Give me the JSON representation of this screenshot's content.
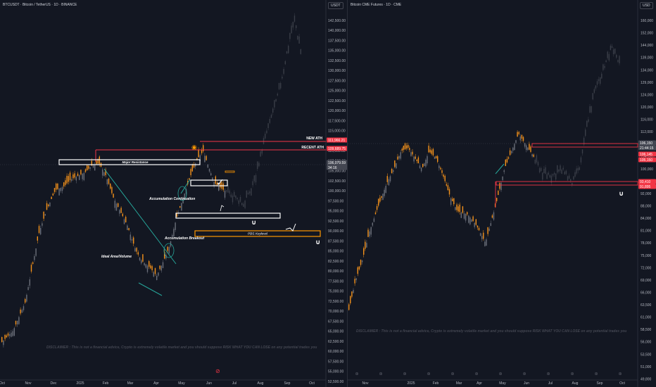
{
  "colors": {
    "bg": "#131722",
    "up": "#f7931a",
    "down": "#6b6f7a",
    "faded": "#3a3e48",
    "red": "#f23645",
    "orange": "#ff9800",
    "teal": "#26a69a",
    "white": "#ffffff",
    "axis": "#b2b5be",
    "grid": "#1e222d"
  },
  "left": {
    "title": "BTCUSDT · Bitcoin / TetherUS · 1D · BINANCE",
    "currency": "USDT",
    "disclaimer": "DISCLAIMER : This is not a financial advice, Crypto is extremely volatile market and you should suppose RISK WHAT YOU CAN LOSE on any potential trades you",
    "price_ticks": [
      "142,500.00",
      "140,000.00",
      "137,500.00",
      "135,000.00",
      "132,500.00",
      "130,000.00",
      "127,500.00",
      "125,000.00",
      "122,500.00",
      "120,000.00",
      "117,500.00",
      "115,000.00",
      "112,500.00",
      "110,000.00",
      "107,500.00",
      "105,000.00",
      "102,500.00",
      "100,000.00",
      "97,500.00",
      "95,000.00",
      "92,500.00",
      "90,000.00",
      "87,500.00",
      "85,000.00",
      "82,500.00",
      "80,000.00",
      "77,500.00",
      "75,000.00",
      "72,500.00",
      "70,000.00",
      "67,500.00",
      "65,000.00",
      "62,500.00",
      "60,000.00",
      "57,500.00",
      "55,000.00",
      "52,500.00"
    ],
    "time_ticks": [
      "Oct",
      "Nov",
      "Dec",
      "2025",
      "Feb",
      "Mar",
      "Apr",
      "May",
      "Jun",
      "Jul",
      "Aug",
      "Sep",
      "Oct"
    ],
    "badges": [
      {
        "value": "111,966.21",
        "color": "#f23645"
      },
      {
        "value": "109,689.75",
        "color": "#f23645"
      },
      {
        "value": "106,079.59",
        "color": "#434651"
      },
      {
        "value": "34:16",
        "color": "#434651"
      }
    ],
    "labels": {
      "new_ath": "NEW ATH",
      "recent_ath": "RECENT ATH",
      "major_resistance": "Major Resistance",
      "accumulation_continuation": "Accumulation Continuation",
      "accumulation_breakout": "Accumulation Breakout",
      "ideal_area": "Ideal Area/Volume",
      "keylevel": "PB/1 Keylevel"
    }
  },
  "right": {
    "title": "Bitcoin CME Futures · 1D · CME",
    "currency": "USD",
    "disclaimer": "DISCLAIMER : This is not a financial advice, Crypto is extremely volatile market and you should suppose RISK WHAT YOU CAN LOSE on any potential trades you",
    "price_ticks": [
      "160,000",
      "152,000",
      "144,000",
      "139,000",
      "134,000",
      "129,000",
      "124,000",
      "120,000",
      "116,000",
      "112,000",
      "108,000",
      "104,000",
      "100,000",
      "96,000",
      "92,000",
      "88,000",
      "84,000",
      "81,000",
      "78,000",
      "75,000",
      "72,000",
      "69,000",
      "66,000",
      "63,500",
      "61,000",
      "58,500",
      "56,000",
      "53,500",
      "51,000",
      "49,800"
    ],
    "time_ticks": [
      "Nov",
      "2025",
      "Feb",
      "Mar",
      "Apr",
      "May",
      "Jun",
      "Jul",
      "Aug",
      "Sep",
      "Oct"
    ],
    "badges": [
      {
        "value": "106,150",
        "color": "#434651"
      },
      {
        "value": "21:44:15",
        "color": "#434651"
      },
      {
        "value": "106,145",
        "color": "#f23645"
      },
      {
        "value": "105,150",
        "color": "#f23645"
      },
      {
        "value": "93,410",
        "color": "#f23645"
      },
      {
        "value": "91,895",
        "color": "#f23645"
      }
    ]
  },
  "chart_data": [
    {
      "type": "candlestick",
      "title": "BTCUSDT · Bitcoin / TetherUS · 1D · BINANCE",
      "ylim": [
        52500,
        145000
      ],
      "x": [
        "Oct",
        "Nov",
        "Dec",
        "2025",
        "Feb",
        "Mar",
        "Apr",
        "May",
        "Jun",
        "Jul",
        "Aug",
        "Sep",
        "Oct"
      ],
      "close_path_approx": [
        {
          "x": "Oct",
          "y": 60500
        },
        {
          "x": "Nov",
          "y": 71000
        },
        {
          "x": "Nov",
          "y": 90000
        },
        {
          "x": "Dec",
          "y": 98000
        },
        {
          "x": "Dec",
          "y": 101000
        },
        {
          "x": "2025",
          "y": 94000
        },
        {
          "x": "2025",
          "y": 104000
        },
        {
          "x": "Feb",
          "y": 100000
        },
        {
          "x": "Feb",
          "y": 97000
        },
        {
          "x": "Mar",
          "y": 86000
        },
        {
          "x": "Mar",
          "y": 82000
        },
        {
          "x": "Apr",
          "y": 78000
        },
        {
          "x": "Apr",
          "y": 84000
        },
        {
          "x": "May",
          "y": 95000
        },
        {
          "x": "May",
          "y": 104000
        },
        {
          "x": "Jun",
          "y": 107000
        },
        {
          "x": "Jun",
          "y": 106000
        },
        {
          "x": "Jul",
          "y": 98000
        },
        {
          "x": "Jul",
          "y": 108000
        },
        {
          "x": "Aug",
          "y": 118000
        },
        {
          "x": "Aug",
          "y": 120000
        },
        {
          "x": "Sep",
          "y": 130000
        },
        {
          "x": "Sep",
          "y": 142000
        },
        {
          "x": "Sep",
          "y": 135000
        }
      ],
      "levels": [
        {
          "name": "NEW ATH",
          "value": 111966.21
        },
        {
          "name": "RECENT ATH",
          "value": 109689.75
        },
        {
          "name": "Last",
          "value": 106079.59
        },
        {
          "name": "Major Resistance",
          "value": 107000
        },
        {
          "name": "PB/1 Keylevel",
          "value": 88000
        }
      ]
    },
    {
      "type": "candlestick",
      "title": "Bitcoin CME Futures · 1D · CME",
      "ylim": [
        49800,
        160000
      ],
      "x": [
        "Nov",
        "2025",
        "Feb",
        "Mar",
        "Apr",
        "May",
        "Jun",
        "Jul",
        "Aug",
        "Sep",
        "Oct"
      ],
      "levels": [
        {
          "value": 106150
        },
        {
          "value": 106145
        },
        {
          "value": 105150
        },
        {
          "value": 93410
        },
        {
          "value": 91895
        }
      ]
    }
  ]
}
